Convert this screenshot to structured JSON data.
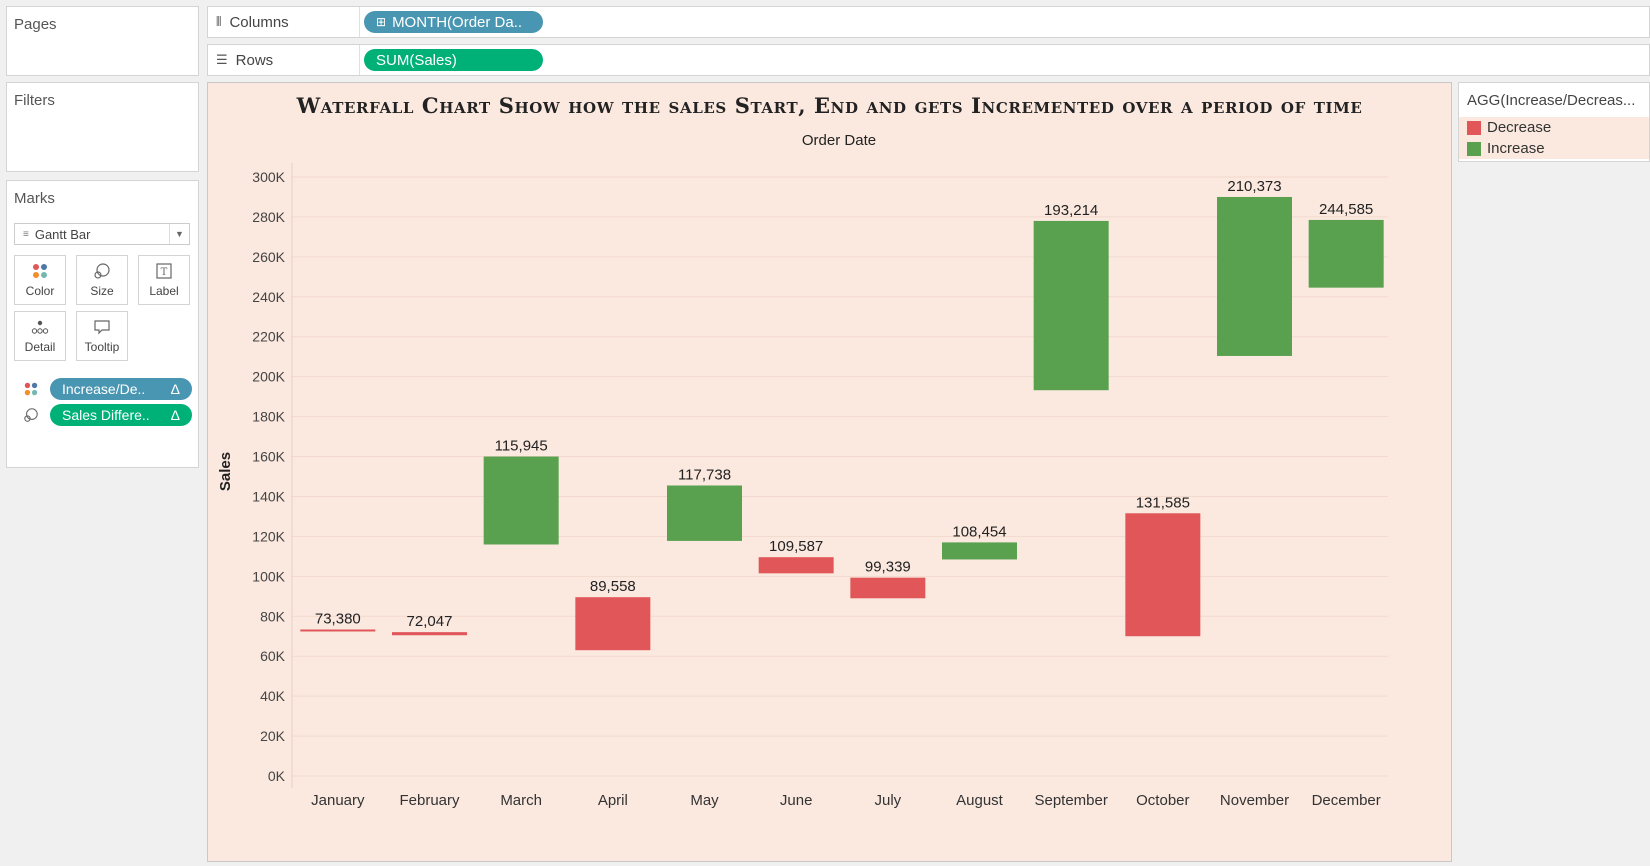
{
  "pages": {
    "title": "Pages"
  },
  "filters": {
    "title": "Filters"
  },
  "columns": {
    "label": "Columns",
    "pill": "MONTH(Order Da.."
  },
  "rows": {
    "label": "Rows",
    "pill": "SUM(Sales)"
  },
  "marks": {
    "title": "Marks",
    "mark_type": "Gantt Bar",
    "buttons": {
      "color": "Color",
      "size": "Size",
      "label": "Label",
      "detail": "Detail",
      "tooltip": "Tooltip"
    },
    "pills": [
      {
        "label": "Increase/De..",
        "delta": "Δ",
        "color": "#4996b2"
      },
      {
        "label": "Sales Differe..",
        "delta": "Δ",
        "color": "#00b177"
      }
    ]
  },
  "legend": {
    "title": "AGG(Increase/Decreas...",
    "items": [
      {
        "label": "Decrease",
        "color": "#e15759"
      },
      {
        "label": "Increase",
        "color": "#59a14f"
      }
    ]
  },
  "chart_data": {
    "type": "bar",
    "subtype": "waterfall-gantt",
    "title": "Waterfall Chart Show how the sales Start, End and gets Incremented over a period of time",
    "xlabel": "Order Date",
    "ylabel": "Sales",
    "ylim": [
      0,
      310000
    ],
    "yticks": [
      0,
      20000,
      40000,
      60000,
      80000,
      100000,
      120000,
      140000,
      160000,
      180000,
      200000,
      220000,
      240000,
      260000,
      280000,
      300000
    ],
    "ytick_labels": [
      "0K",
      "20K",
      "40K",
      "60K",
      "80K",
      "100K",
      "120K",
      "140K",
      "160K",
      "180K",
      "200K",
      "220K",
      "240K",
      "260K",
      "280K",
      "300K"
    ],
    "categories": [
      "January",
      "February",
      "March",
      "April",
      "May",
      "June",
      "July",
      "August",
      "September",
      "October",
      "November",
      "December"
    ],
    "bars": [
      {
        "month": "January",
        "label": "73,380",
        "start": 73380,
        "end": 72600,
        "status": "Decrease"
      },
      {
        "month": "February",
        "label": "72,047",
        "start": 72047,
        "end": 70500,
        "status": "Decrease"
      },
      {
        "month": "March",
        "label": "115,945",
        "start": 115945,
        "end": 160000,
        "status": "Increase"
      },
      {
        "month": "April",
        "label": "89,558",
        "start": 89558,
        "end": 63000,
        "status": "Decrease"
      },
      {
        "month": "May",
        "label": "117,738",
        "start": 117738,
        "end": 145500,
        "status": "Increase"
      },
      {
        "month": "June",
        "label": "109,587",
        "start": 109587,
        "end": 101500,
        "status": "Decrease"
      },
      {
        "month": "July",
        "label": "99,339",
        "start": 99339,
        "end": 89000,
        "status": "Decrease"
      },
      {
        "month": "August",
        "label": "108,454",
        "start": 108454,
        "end": 117000,
        "status": "Increase"
      },
      {
        "month": "September",
        "label": "193,214",
        "start": 193214,
        "end": 278000,
        "status": "Increase"
      },
      {
        "month": "October",
        "label": "131,585",
        "start": 131585,
        "end": 70000,
        "status": "Decrease"
      },
      {
        "month": "November",
        "label": "210,373",
        "start": 210373,
        "end": 290000,
        "status": "Increase"
      },
      {
        "month": "December",
        "label": "244,585",
        "start": 244585,
        "end": 278500,
        "status": "Increase"
      }
    ],
    "colors": {
      "Decrease": "#e15759",
      "Increase": "#59a14f"
    },
    "grid": true
  }
}
